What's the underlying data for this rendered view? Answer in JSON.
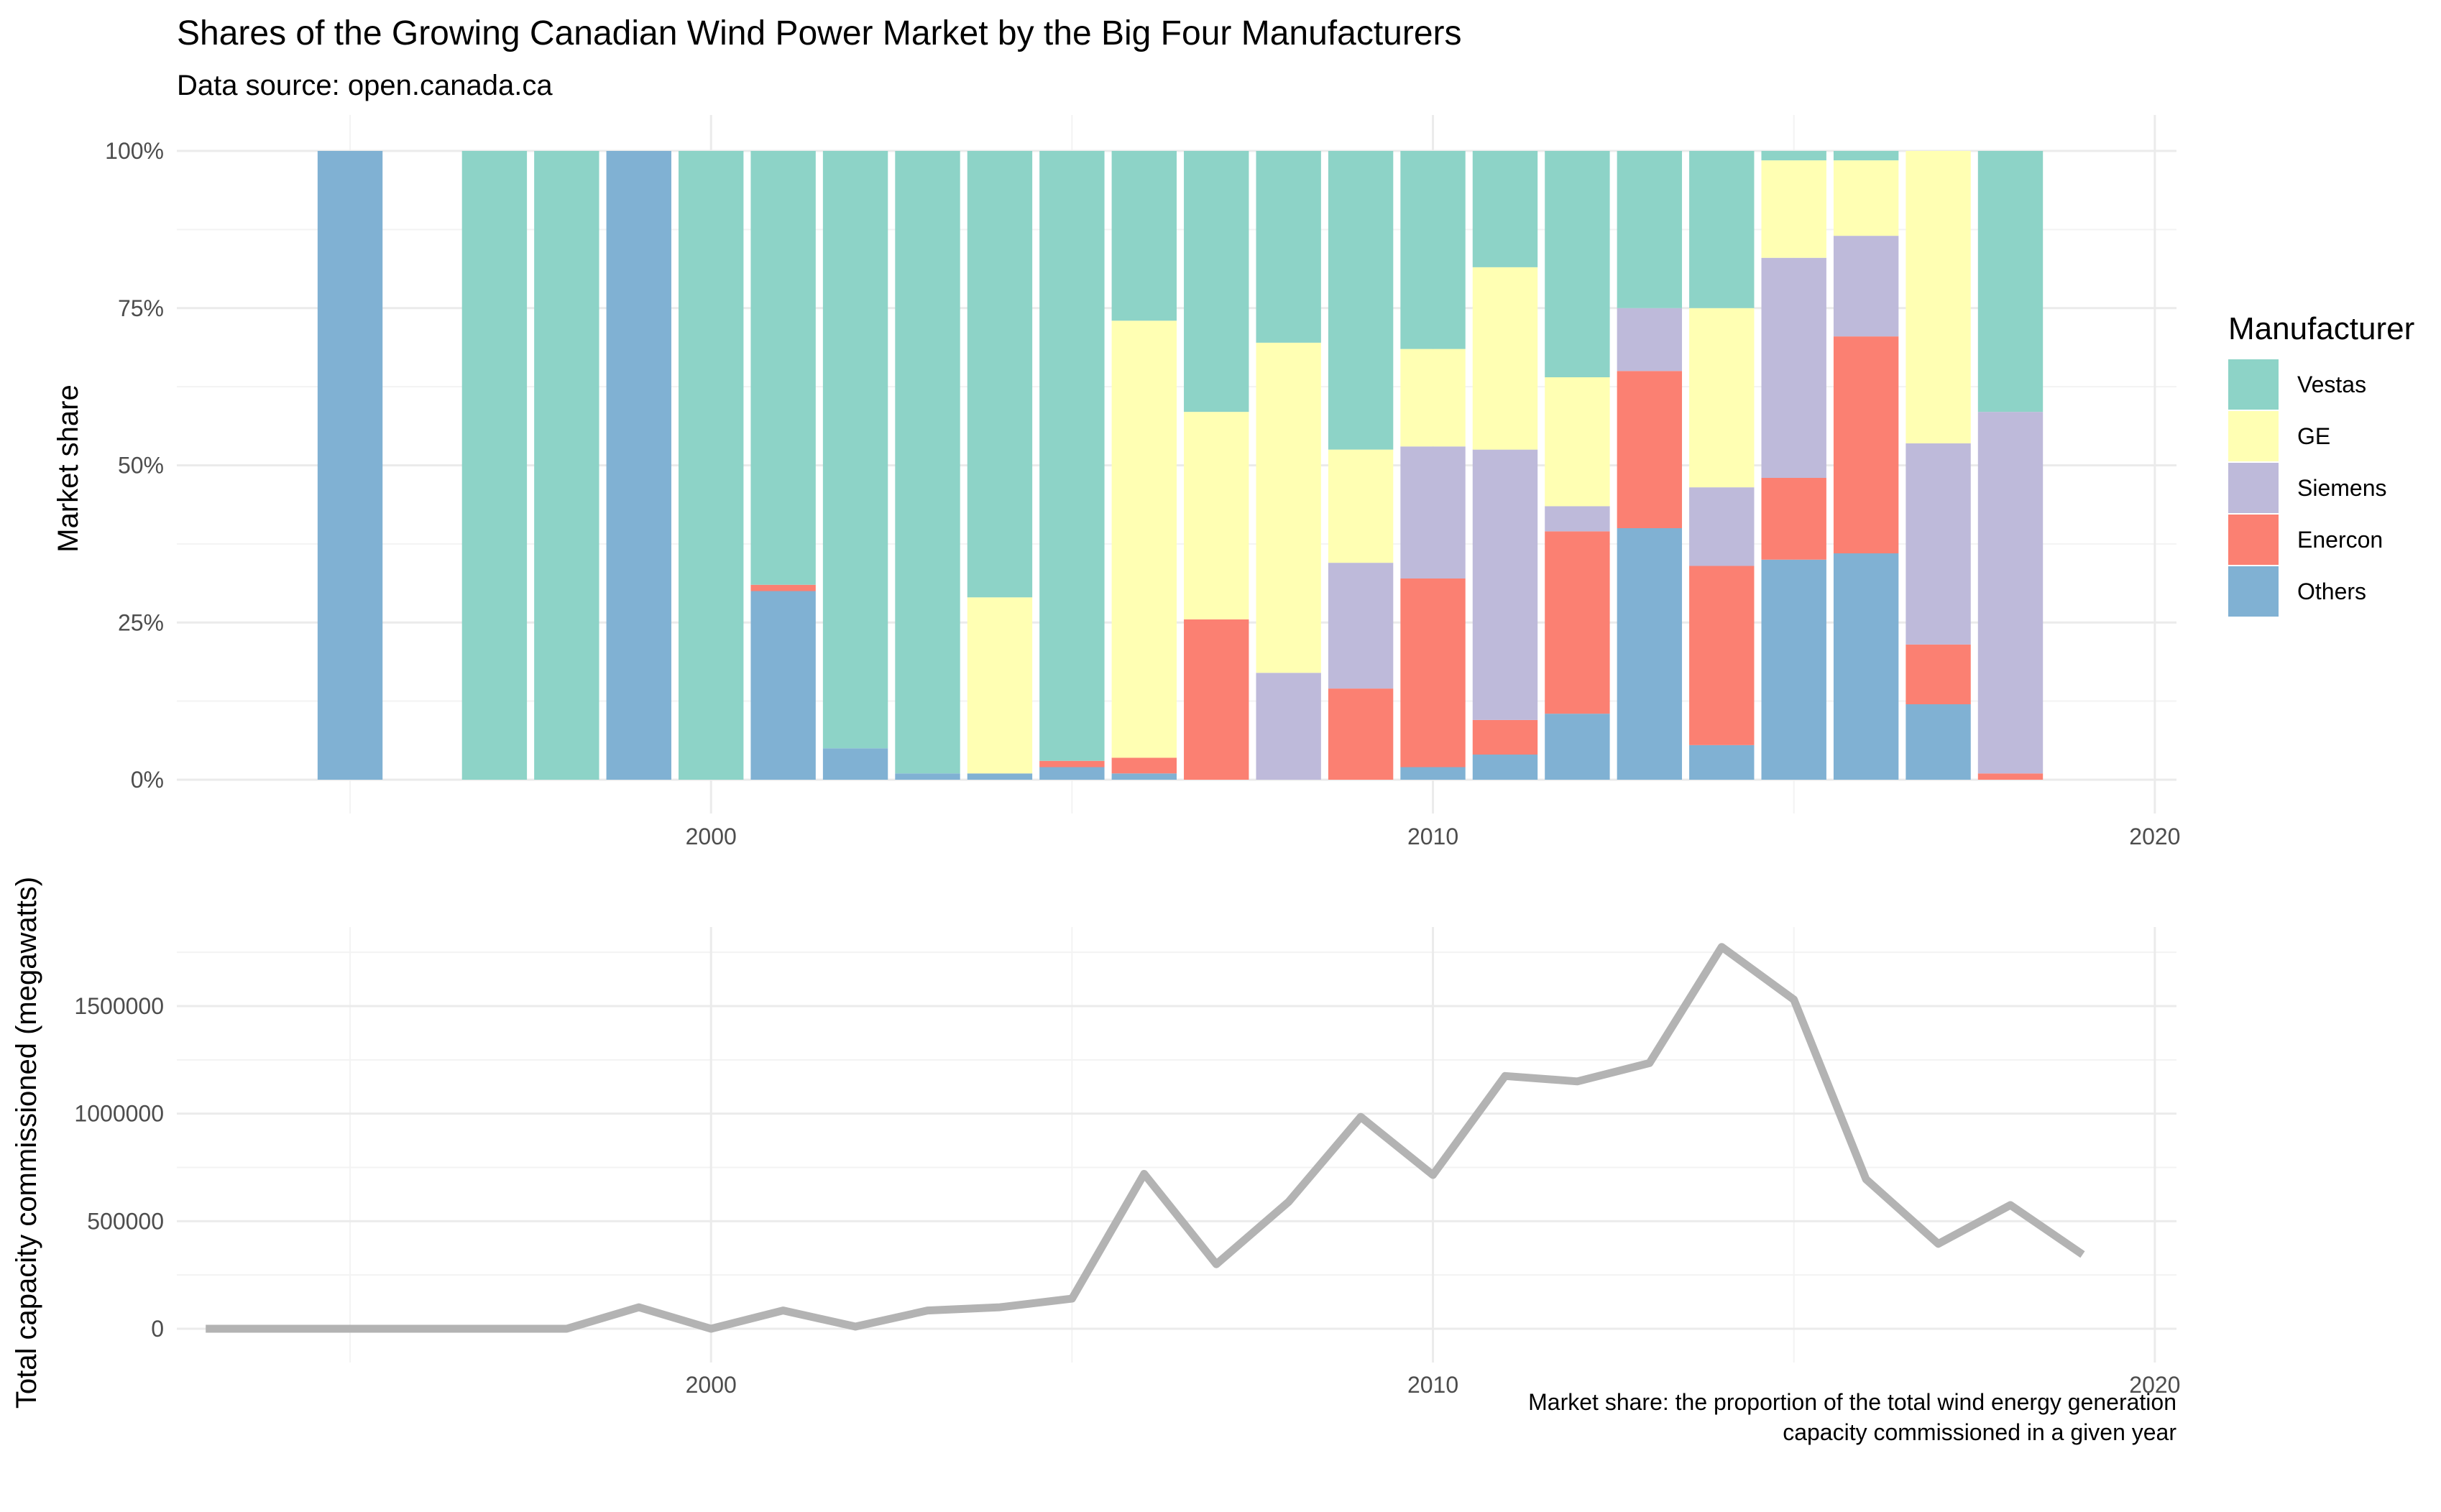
{
  "title": "Shares of the Growing Canadian Wind Power Market by the Big Four Manufacturers",
  "subtitle": "Data source: open.canada.ca",
  "caption": [
    "Market share: the proportion of the total wind energy generation",
    "capacity commissioned in a given year"
  ],
  "colors": {
    "Vestas": "#8dd3c7",
    "GE": "#ffffb3",
    "Siemens": "#bebada",
    "Enercon": "#fb8072",
    "Others": "#80b1d3",
    "line": "#b3b3b3"
  },
  "chart_data": [
    {
      "type": "bar",
      "stacked": true,
      "ylabel": "Market share",
      "xlim": [
        1992.6,
        2020.3
      ],
      "ylim": [
        0,
        1
      ],
      "x_ticks": [
        2000,
        2010,
        2020
      ],
      "y_ticks": [
        0,
        0.25,
        0.5,
        0.75,
        1
      ],
      "y_tick_labels": [
        "0%",
        "25%",
        "50%",
        "75%",
        "100%"
      ],
      "legend": {
        "title": "Manufacturer",
        "position": "right",
        "entries": [
          "Vestas",
          "GE",
          "Siemens",
          "Enercon",
          "Others"
        ]
      },
      "stack_order_bottom_to_top": [
        "Others",
        "Enercon",
        "Siemens",
        "GE",
        "Vestas"
      ],
      "years": [
        1995,
        1997,
        1998,
        1999,
        2000,
        2001,
        2002,
        2003,
        2004,
        2005,
        2006,
        2007,
        2008,
        2009,
        2010,
        2011,
        2012,
        2013,
        2014,
        2015,
        2016,
        2017,
        2018
      ],
      "series": [
        {
          "name": "Others",
          "values": [
            1.0,
            0,
            0,
            1.0,
            0,
            0.3,
            0.05,
            0.01,
            0.01,
            0.02,
            0.01,
            0,
            0,
            0,
            0.02,
            0.04,
            0.105,
            0.4,
            0.055,
            0.35,
            0.36,
            0.12,
            0
          ]
        },
        {
          "name": "Enercon",
          "values": [
            0,
            0,
            0,
            0,
            0,
            0.01,
            0,
            0,
            0,
            0.01,
            0.025,
            0.255,
            0,
            0.145,
            0.3,
            0.055,
            0.29,
            0.25,
            0.285,
            0.13,
            0.345,
            0.095,
            0.01
          ]
        },
        {
          "name": "Siemens",
          "values": [
            0,
            0,
            0,
            0,
            0,
            0,
            0,
            0,
            0,
            0,
            0,
            0,
            0.17,
            0.2,
            0.21,
            0.43,
            0.04,
            0.1,
            0.125,
            0.35,
            0.16,
            0.32,
            0.575
          ]
        },
        {
          "name": "GE",
          "values": [
            0,
            0,
            0,
            0,
            0,
            0,
            0,
            0,
            0.28,
            0,
            0.695,
            0.33,
            0.525,
            0.18,
            0.155,
            0.29,
            0.205,
            0,
            0.285,
            0.155,
            0.12,
            0.465,
            0
          ]
        },
        {
          "name": "Vestas",
          "values": [
            0,
            1.0,
            1.0,
            0,
            1.0,
            0.69,
            0.95,
            0.99,
            0.71,
            0.97,
            0.27,
            0.415,
            0.305,
            0.475,
            0.315,
            0.185,
            0.36,
            0.25,
            0.25,
            0.015,
            0.015,
            0,
            0.415
          ]
        }
      ]
    },
    {
      "type": "line",
      "ylabel": "Total capacity commissioned (megawatts)",
      "xlim": [
        1992.6,
        2020.3
      ],
      "ylim": [
        -60000,
        1890000
      ],
      "x_ticks": [
        2000,
        2010,
        2020
      ],
      "y_ticks": [
        0,
        500000,
        1000000,
        1500000
      ],
      "y_tick_labels": [
        "0",
        "500000",
        "1000000",
        "1500000"
      ],
      "x": [
        1993,
        1994,
        1995,
        1996,
        1997,
        1998,
        1999,
        2000,
        2001,
        2002,
        2003,
        2004,
        2005,
        2006,
        2007,
        2008,
        2009,
        2010,
        2011,
        2012,
        2013,
        2014,
        2015,
        2016,
        2017,
        2018,
        2019
      ],
      "y": [
        0,
        0,
        0,
        0,
        0,
        0,
        100000,
        0,
        85000,
        10000,
        85000,
        100000,
        140000,
        720000,
        300000,
        590000,
        985000,
        715000,
        1175000,
        1150000,
        1235000,
        1775000,
        1530000,
        695000,
        395000,
        575000,
        345000
      ]
    }
  ]
}
